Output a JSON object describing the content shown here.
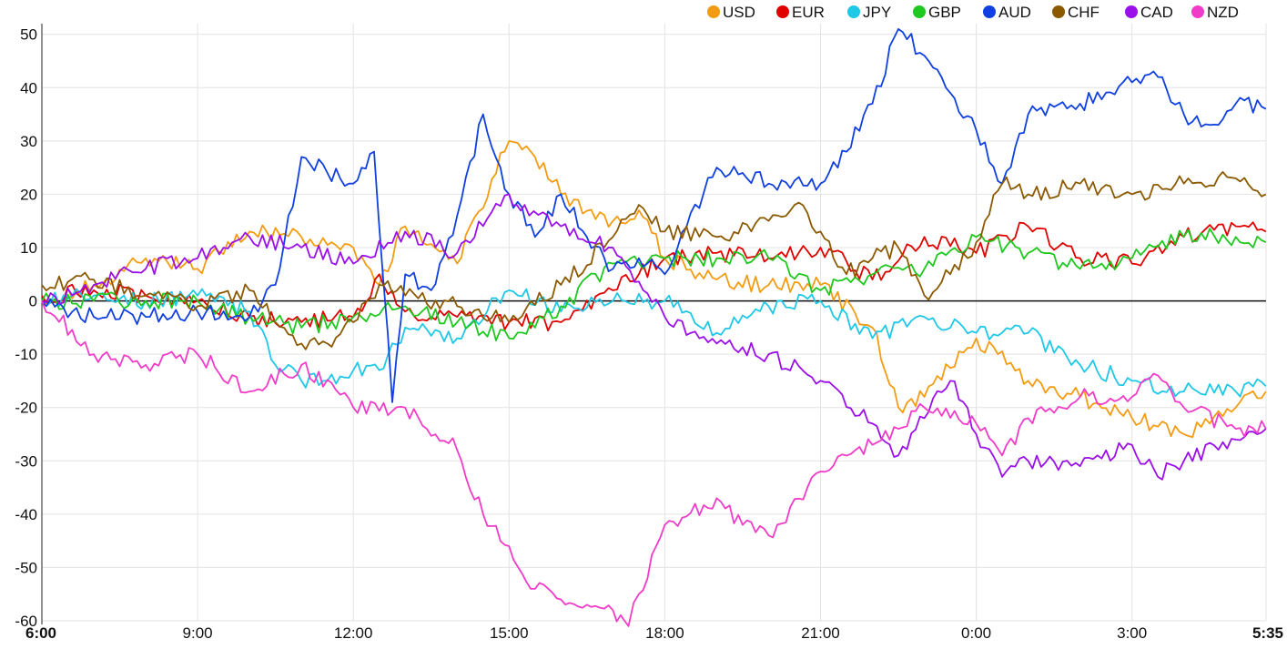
{
  "chart_data": {
    "type": "line",
    "x_axis": {
      "start_label": "6:00",
      "end_label": "5:35",
      "tick_labels": [
        "9:00",
        "12:00",
        "15:00",
        "18:00",
        "21:00",
        "0:00",
        "3:00"
      ],
      "start_hour": 6,
      "end_hour": 29.583
    },
    "y_axis": {
      "ylim": [
        -60,
        52
      ],
      "ticks": [
        50,
        40,
        30,
        20,
        10,
        0,
        -10,
        -20,
        -30,
        -40,
        -50,
        -60
      ]
    },
    "grid": true,
    "legend_position": "top-right",
    "series": [
      {
        "name": "USD",
        "color": "#f39c12",
        "x": [
          6,
          7,
          8,
          9,
          10,
          11,
          12,
          12.5,
          13,
          14,
          15,
          15.5,
          16,
          17,
          17.5,
          18,
          19,
          20,
          21,
          22,
          22.5,
          23,
          24,
          25,
          26,
          27,
          28,
          29,
          29.58
        ],
        "y": [
          0,
          3,
          8,
          6,
          13,
          12,
          10,
          3,
          14,
          7,
          30,
          27,
          20,
          15,
          17,
          8,
          4,
          3,
          3,
          -5,
          -20,
          -18,
          -7,
          -15,
          -18,
          -22,
          -25,
          -20,
          -17
        ]
      },
      {
        "name": "EUR",
        "color": "#e10000",
        "x": [
          6,
          7,
          8,
          9,
          10,
          11,
          12,
          12.5,
          13,
          14,
          15,
          16,
          17,
          18,
          19,
          20,
          21,
          22,
          23,
          24,
          25,
          26,
          27,
          28,
          29,
          29.58
        ],
        "y": [
          1,
          2,
          1,
          0,
          -3,
          -4,
          -3,
          5,
          -2,
          -3,
          -4,
          -4,
          2,
          8,
          9,
          8,
          10,
          4,
          12,
          9,
          14,
          8,
          7,
          12,
          14,
          13
        ]
      },
      {
        "name": "JPY",
        "color": "#1ec8e6",
        "x": [
          6,
          7,
          8,
          9,
          10,
          10.5,
          11,
          11.5,
          12,
          12.5,
          13,
          14,
          15,
          16,
          17,
          18,
          19,
          20,
          21,
          22,
          23,
          24,
          25,
          26,
          27,
          28,
          29,
          29.58
        ],
        "y": [
          0,
          1,
          0,
          1,
          -2,
          -12,
          -15,
          -15,
          -13,
          -13,
          -5,
          -7,
          2,
          -2,
          0,
          0,
          -6,
          -1,
          0,
          -7,
          -3,
          -6,
          -6,
          -12,
          -15,
          -17,
          -17,
          -16
        ]
      },
      {
        "name": "GBP",
        "color": "#1ec81e",
        "x": [
          6,
          7,
          8,
          9,
          10,
          11,
          12,
          13,
          14,
          15,
          16,
          17,
          18,
          19,
          20,
          21,
          22,
          23,
          24,
          25,
          26,
          27,
          28,
          29,
          29.58
        ],
        "y": [
          0,
          0,
          0,
          0,
          -3,
          -5,
          -3,
          -1,
          -4,
          -7,
          -1,
          7,
          8,
          8,
          8,
          2,
          5,
          6,
          12,
          9,
          6,
          8,
          12,
          12,
          11
        ]
      },
      {
        "name": "AUD",
        "color": "#1040e0",
        "x": [
          6,
          7,
          8,
          9,
          10,
          10.5,
          11,
          11.5,
          12,
          12.4,
          12.75,
          13,
          13.5,
          14,
          14.5,
          15,
          15.5,
          16,
          16.5,
          17,
          17.5,
          18,
          19,
          19.5,
          20,
          21,
          21.5,
          22,
          22.5,
          23,
          23.5,
          24,
          24.5,
          25,
          26,
          27,
          27.5,
          28,
          28.5,
          29,
          29.58
        ],
        "y": [
          0,
          -3,
          -3,
          -2,
          -3,
          3,
          27,
          24,
          22,
          28,
          -19,
          5,
          2,
          16,
          35,
          20,
          12,
          20,
          12,
          6,
          8,
          5,
          25,
          24,
          22,
          22,
          28,
          37,
          51,
          46,
          39,
          32,
          22,
          35,
          37,
          41,
          42,
          35,
          33,
          37,
          36
        ]
      },
      {
        "name": "CHF",
        "color": "#8b5a00",
        "x": [
          6,
          7,
          8,
          9,
          10,
          10.5,
          11,
          11.5,
          12,
          12.5,
          13,
          14,
          15,
          16,
          17,
          17.5,
          18,
          19,
          20,
          20.5,
          21,
          21.5,
          22,
          22.5,
          23,
          23.5,
          24,
          24.5,
          25,
          26,
          27,
          28,
          29,
          29.58
        ],
        "y": [
          3,
          4,
          1,
          -1,
          2,
          -4,
          -8,
          -8,
          -4,
          3,
          1,
          -1,
          -4,
          3,
          12,
          18,
          13,
          12,
          15,
          18,
          13,
          5,
          8,
          10,
          1,
          5,
          11,
          22,
          20,
          22,
          20,
          22,
          23,
          20
        ]
      },
      {
        "name": "CAD",
        "color": "#9b10e8",
        "x": [
          6,
          7,
          8,
          9,
          10,
          11,
          12,
          13,
          14,
          15,
          15.3,
          16,
          17,
          18,
          18.5,
          19,
          20,
          21,
          22,
          22.5,
          23,
          23.5,
          24,
          24.5,
          25,
          26,
          27,
          27.5,
          28,
          29,
          29.58
        ],
        "y": [
          0,
          3,
          6,
          8,
          12,
          10,
          7,
          13,
          9,
          20,
          18,
          14,
          10,
          -3,
          -6,
          -8,
          -10,
          -15,
          -23,
          -29,
          -22,
          -15,
          -25,
          -33,
          -30,
          -31,
          -27,
          -33,
          -30,
          -26,
          -24
        ]
      },
      {
        "name": "NZD",
        "color": "#f03cc8",
        "x": [
          6,
          7,
          8,
          9,
          10,
          11,
          12,
          13,
          14,
          14.5,
          15,
          15.5,
          16,
          16.5,
          17,
          17.3,
          17.5,
          18,
          19,
          19.5,
          20,
          21,
          22,
          22.5,
          23,
          24,
          24.5,
          25,
          26,
          27,
          27.5,
          28,
          29,
          29.58
        ],
        "y": [
          0,
          -10,
          -12,
          -10,
          -17,
          -12,
          -20,
          -20,
          -28,
          -40,
          -46,
          -54,
          -56,
          -57,
          -58,
          -61,
          -55,
          -42,
          -37,
          -42,
          -44,
          -32,
          -27,
          -24,
          -20,
          -23,
          -29,
          -22,
          -18,
          -18,
          -14,
          -20,
          -24,
          -24
        ]
      }
    ]
  }
}
